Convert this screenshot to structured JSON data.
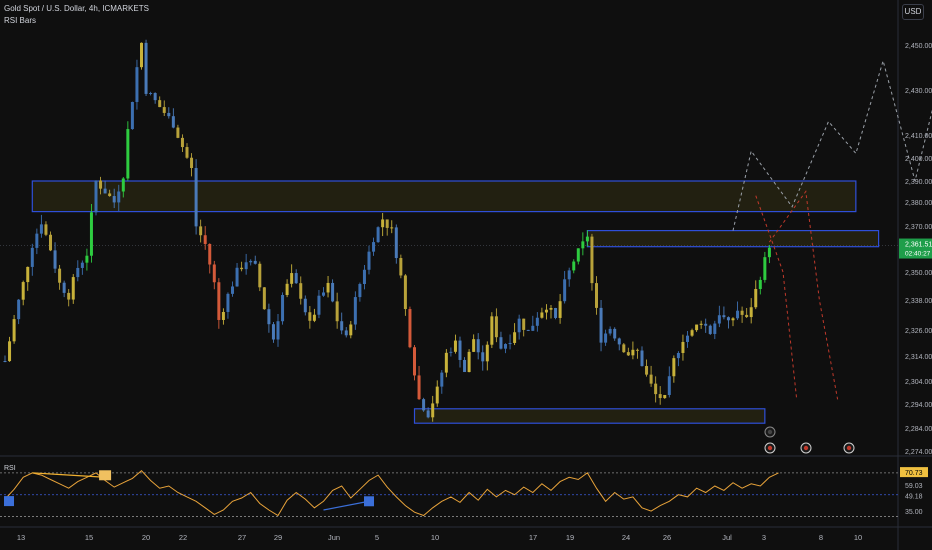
{
  "header": {
    "symbol_line": "Gold Spot / U.S. Dollar, 4h, ICMARKETS",
    "indicator_line": "RSI Bars",
    "currency": "USD"
  },
  "price_label": {
    "value": "2,361.51",
    "timer": "02:40:27",
    "price": 2361.51
  },
  "chart_data": [
    {
      "type": "candlestick",
      "title": "Gold Spot / U.S. Dollar, 4h, ICMARKETS",
      "y_ticks": [
        "2,450.00",
        "2,430.00",
        "2,410.00",
        "2,400.00",
        "2,390.00",
        "2,380.00",
        "2,370.00",
        "2,350.00",
        "2,338.00",
        "2,326.00",
        "2,314.00",
        "2,304.00",
        "2,294.00",
        "2,284.00",
        "2,274.00"
      ],
      "x_ticks": [
        "13",
        "15",
        "20",
        "22",
        "27",
        "29",
        "Jun",
        "5",
        "10",
        "17",
        "19",
        "24",
        "26",
        "Jul",
        "3",
        "8",
        "10"
      ],
      "price_path": [
        [
          0,
          2312
        ],
        [
          2,
          2330
        ],
        [
          4,
          2345
        ],
        [
          6,
          2362
        ],
        [
          8,
          2372
        ],
        [
          10,
          2360
        ],
        [
          12,
          2345
        ],
        [
          14,
          2340
        ],
        [
          16,
          2352
        ],
        [
          18,
          2358
        ],
        [
          20,
          2390
        ],
        [
          22,
          2385
        ],
        [
          24,
          2380
        ],
        [
          26,
          2393
        ],
        [
          27,
          2412
        ],
        [
          29,
          2440
        ],
        [
          30,
          2451
        ],
        [
          31,
          2430
        ],
        [
          33,
          2425
        ],
        [
          35,
          2420
        ],
        [
          37,
          2415
        ],
        [
          39,
          2405
        ],
        [
          41,
          2395
        ],
        [
          42,
          2370
        ],
        [
          44,
          2362
        ],
        [
          46,
          2345
        ],
        [
          47,
          2330
        ],
        [
          49,
          2340
        ],
        [
          51,
          2350
        ],
        [
          53,
          2355
        ],
        [
          55,
          2352
        ],
        [
          57,
          2335
        ],
        [
          59,
          2322
        ],
        [
          61,
          2340
        ],
        [
          63,
          2348
        ],
        [
          65,
          2340
        ],
        [
          67,
          2328
        ],
        [
          69,
          2338
        ],
        [
          71,
          2344
        ],
        [
          73,
          2330
        ],
        [
          75,
          2322
        ],
        [
          77,
          2338
        ],
        [
          79,
          2352
        ],
        [
          81,
          2365
        ],
        [
          83,
          2373
        ],
        [
          85,
          2368
        ],
        [
          87,
          2348
        ],
        [
          89,
          2320
        ],
        [
          91,
          2296
        ],
        [
          93,
          2290
        ],
        [
          95,
          2300
        ],
        [
          97,
          2315
        ],
        [
          99,
          2320
        ],
        [
          101,
          2308
        ],
        [
          103,
          2322
        ],
        [
          105,
          2310
        ],
        [
          107,
          2330
        ],
        [
          109,
          2318
        ],
        [
          111,
          2322
        ],
        [
          113,
          2330
        ],
        [
          115,
          2325
        ],
        [
          117,
          2332
        ],
        [
          119,
          2336
        ],
        [
          121,
          2330
        ],
        [
          123,
          2345
        ],
        [
          125,
          2355
        ],
        [
          127,
          2362
        ],
        [
          128,
          2366
        ],
        [
          129,
          2345
        ],
        [
          131,
          2322
        ],
        [
          133,
          2327
        ],
        [
          135,
          2320
        ],
        [
          137,
          2315
        ],
        [
          139,
          2316
        ],
        [
          141,
          2306
        ],
        [
          143,
          2298
        ],
        [
          145,
          2296
        ],
        [
          147,
          2312
        ],
        [
          149,
          2322
        ],
        [
          151,
          2325
        ],
        [
          153,
          2330
        ],
        [
          155,
          2325
        ],
        [
          157,
          2333
        ],
        [
          159,
          2328
        ],
        [
          161,
          2334
        ],
        [
          163,
          2330
        ],
        [
          165,
          2342
        ],
        [
          167,
          2355
        ],
        [
          168,
          2362
        ]
      ],
      "zones": [
        {
          "top": 2390,
          "bottom": 2376,
          "x_start": 6,
          "x_end": 187
        },
        {
          "top": 2368,
          "bottom": 2361,
          "x_start": 128,
          "x_end": 192
        },
        {
          "top": 2292,
          "bottom": 2286,
          "x_start": 90,
          "x_end": 167
        }
      ],
      "projection_paths": [
        [
          [
            160,
            2368
          ],
          [
            164,
            2403
          ],
          [
            173,
            2378
          ],
          [
            181,
            2416
          ],
          [
            187,
            2402
          ],
          [
            193,
            2443
          ],
          [
            200,
            2390
          ],
          [
            208,
            2456
          ]
        ],
        [
          [
            165,
            2383
          ],
          [
            171,
            2350
          ],
          [
            174,
            2296
          ]
        ],
        [
          [
            168,
            2363
          ],
          [
            176,
            2385
          ],
          [
            179,
            2338
          ],
          [
            183,
            2296
          ]
        ]
      ],
      "current_price": 2361.51
    },
    {
      "type": "line",
      "title": "RSI",
      "y_ticks": [
        "70.73",
        "59.03",
        "49.18",
        "35.00"
      ],
      "levels": [
        70,
        50,
        30
      ],
      "rsi_path": [
        [
          0,
          46
        ],
        [
          2,
          55
        ],
        [
          4,
          66
        ],
        [
          6,
          70
        ],
        [
          8,
          68
        ],
        [
          10,
          64
        ],
        [
          12,
          60
        ],
        [
          14,
          56
        ],
        [
          16,
          62
        ],
        [
          18,
          66
        ],
        [
          20,
          70
        ],
        [
          22,
          63
        ],
        [
          24,
          57
        ],
        [
          26,
          61
        ],
        [
          28,
          65
        ],
        [
          30,
          72
        ],
        [
          32,
          63
        ],
        [
          34,
          56
        ],
        [
          36,
          58
        ],
        [
          38,
          52
        ],
        [
          40,
          48
        ],
        [
          42,
          44
        ],
        [
          44,
          38
        ],
        [
          46,
          32
        ],
        [
          48,
          36
        ],
        [
          50,
          44
        ],
        [
          52,
          47
        ],
        [
          54,
          52
        ],
        [
          56,
          42
        ],
        [
          58,
          36
        ],
        [
          60,
          31
        ],
        [
          62,
          45
        ],
        [
          64,
          52
        ],
        [
          66,
          46
        ],
        [
          68,
          38
        ],
        [
          70,
          44
        ],
        [
          72,
          54
        ],
        [
          74,
          58
        ],
        [
          76,
          47
        ],
        [
          78,
          55
        ],
        [
          80,
          63
        ],
        [
          82,
          68
        ],
        [
          84,
          57
        ],
        [
          86,
          48
        ],
        [
          88,
          40
        ],
        [
          90,
          34
        ],
        [
          92,
          31
        ],
        [
          94,
          38
        ],
        [
          96,
          44
        ],
        [
          98,
          48
        ],
        [
          100,
          43
        ],
        [
          102,
          52
        ],
        [
          104,
          45
        ],
        [
          106,
          55
        ],
        [
          108,
          48
        ],
        [
          110,
          54
        ],
        [
          112,
          50
        ],
        [
          114,
          57
        ],
        [
          116,
          52
        ],
        [
          118,
          60
        ],
        [
          120,
          54
        ],
        [
          122,
          62
        ],
        [
          124,
          66
        ],
        [
          126,
          64
        ],
        [
          128,
          70
        ],
        [
          130,
          56
        ],
        [
          132,
          44
        ],
        [
          134,
          52
        ],
        [
          136,
          46
        ],
        [
          138,
          48
        ],
        [
          140,
          38
        ],
        [
          142,
          35
        ],
        [
          144,
          40
        ],
        [
          146,
          44
        ],
        [
          148,
          50
        ],
        [
          150,
          48
        ],
        [
          152,
          56
        ],
        [
          154,
          52
        ],
        [
          156,
          58
        ],
        [
          158,
          54
        ],
        [
          160,
          61
        ],
        [
          162,
          56
        ],
        [
          164,
          60
        ],
        [
          166,
          58
        ],
        [
          168,
          66
        ],
        [
          170,
          70
        ]
      ],
      "rsi_divergence_top": [
        [
          6,
          70
        ],
        [
          22,
          66
        ]
      ],
      "rsi_divergence_bottom": [
        [
          70,
          36
        ],
        [
          80,
          44
        ]
      ]
    }
  ]
}
